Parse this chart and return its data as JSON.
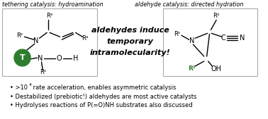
{
  "title_left": "tethering catalysis: hydroamination",
  "title_right": "aldehyde catalysis: directed hydration",
  "center_text_lines": [
    "aldehydes induce",
    "temporary",
    "intramolecularity!"
  ],
  "bullet_1a": "• >10",
  "bullet_1_sup": "4",
  "bullet_1b": " rate acceleration, enables asymmetric catalysis",
  "bullet_2": "• Destabilized (prebiotic!) aldehydes are most active catalysts",
  "bullet_3": "• Hydrolyses reactions of P(=O)NH substrates also discussed",
  "green_circle_color": "#2e7d2e",
  "green_text_color": "#2e7d2e",
  "background": "#ffffff",
  "border_color": "#aaaaaa",
  "text_color": "#000000",
  "figsize": [
    3.78,
    1.69
  ],
  "dpi": 100
}
